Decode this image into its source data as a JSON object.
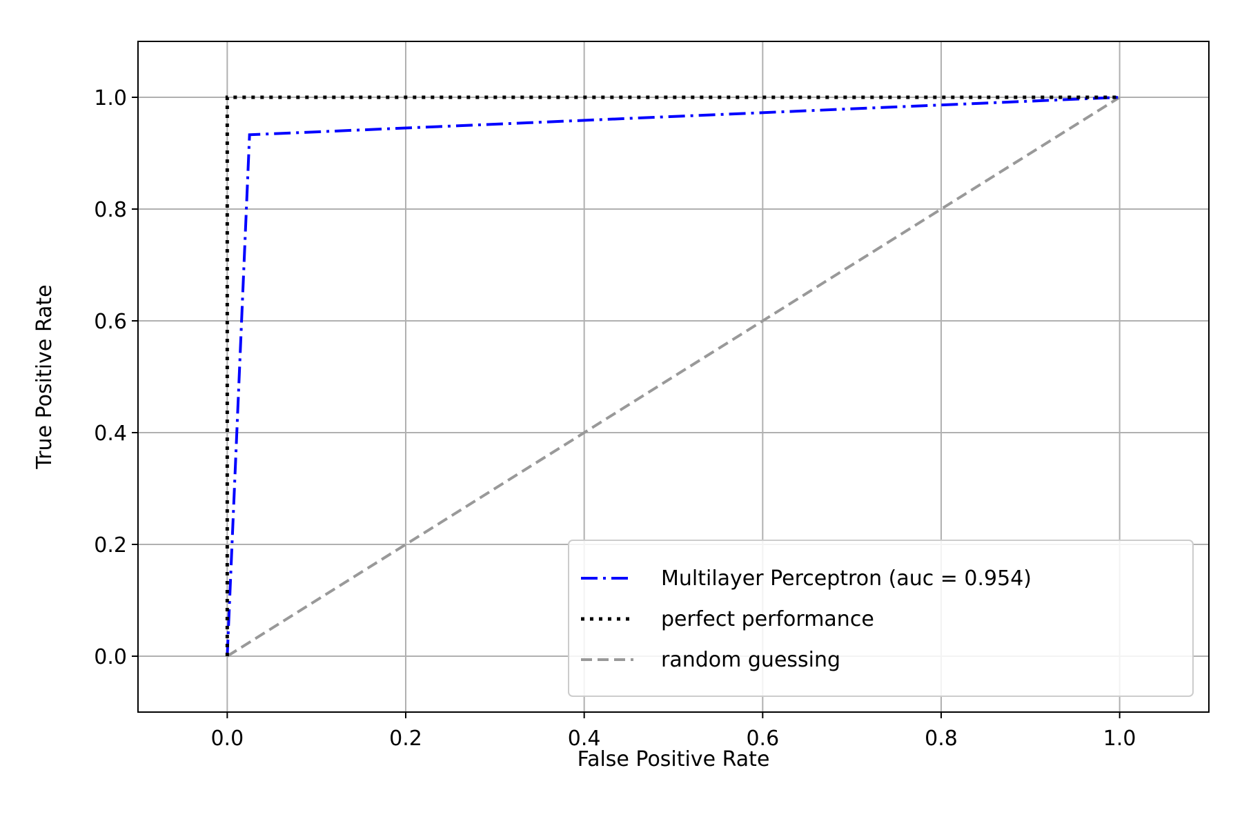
{
  "chart_data": {
    "type": "line",
    "title": "",
    "xlabel": "False Positive Rate",
    "ylabel": "True Positive Rate",
    "xlim": [
      -0.1,
      1.1
    ],
    "ylim": [
      -0.1,
      1.1
    ],
    "xticks": [
      0.0,
      0.2,
      0.4,
      0.6,
      0.8,
      1.0
    ],
    "yticks": [
      0.0,
      0.2,
      0.4,
      0.6,
      0.8,
      1.0
    ],
    "xtick_labels": [
      "0.0",
      "0.2",
      "0.4",
      "0.6",
      "0.8",
      "1.0"
    ],
    "ytick_labels": [
      "0.0",
      "0.2",
      "0.4",
      "0.6",
      "0.8",
      "1.0"
    ],
    "grid": true,
    "legend_position": "lower-right",
    "series": [
      {
        "name": "Multilayer Perceptron (auc = 0.954)",
        "x": [
          0.0,
          0.025,
          1.0
        ],
        "y": [
          0.0,
          0.933,
          1.0
        ],
        "color": "#0000ff",
        "style": "dashdot"
      },
      {
        "name": "perfect performance",
        "x": [
          0.0,
          0.0,
          1.0
        ],
        "y": [
          0.0,
          1.0,
          1.0
        ],
        "color": "#000000",
        "style": "dotted"
      },
      {
        "name": "random guessing",
        "x": [
          0.0,
          1.0
        ],
        "y": [
          0.0,
          1.0
        ],
        "color": "#999999",
        "style": "dashed"
      }
    ]
  }
}
